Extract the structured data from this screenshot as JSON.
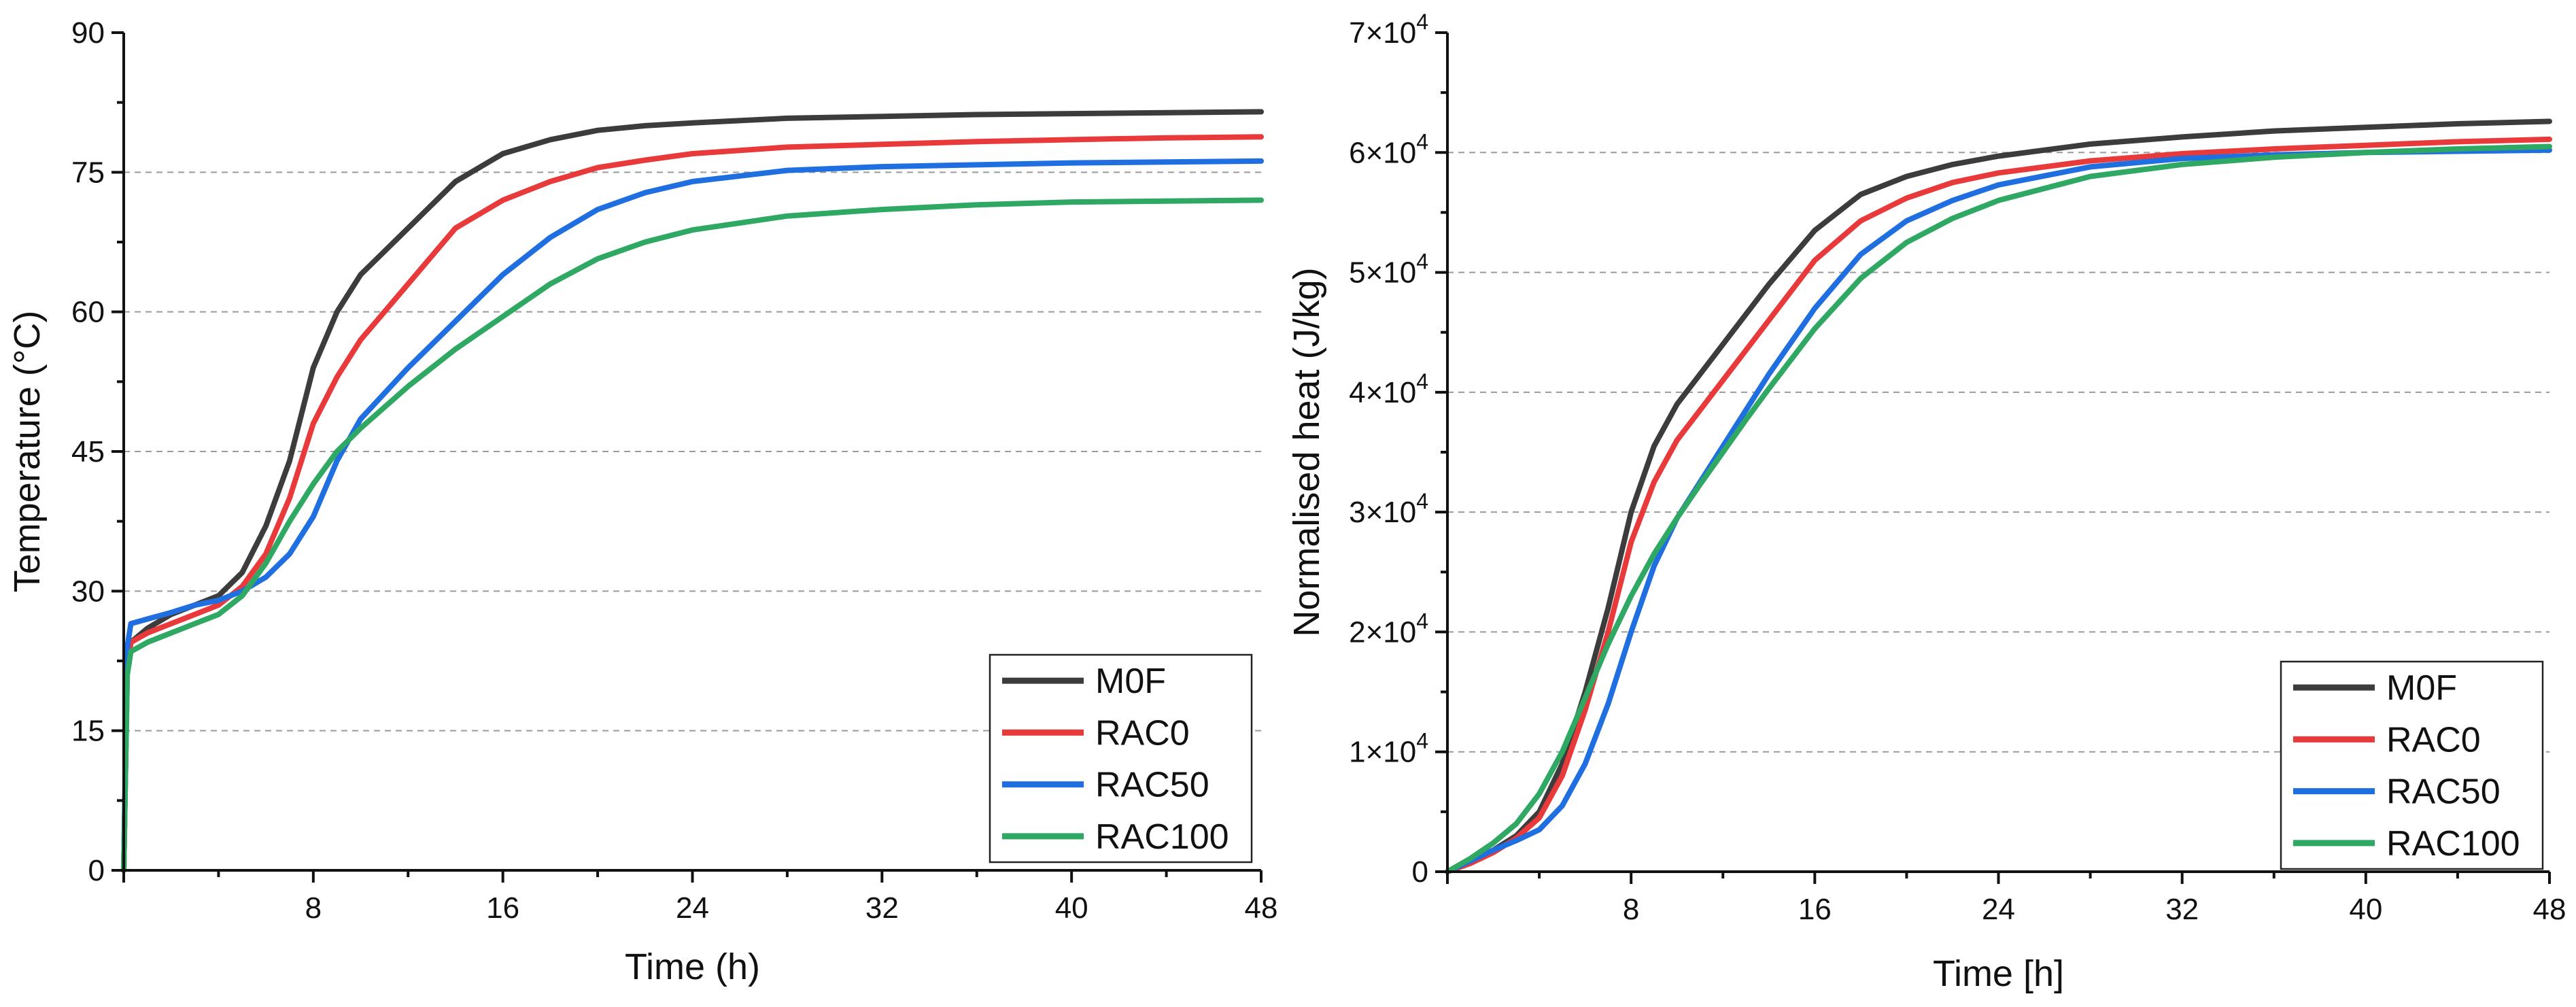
{
  "colors": {
    "M0F": "#3c3c3c",
    "RAC0": "#e83a3a",
    "RAC50": "#1f6fe0",
    "RAC100": "#2ea862"
  },
  "chart_data": [
    {
      "id": "temperature",
      "type": "line",
      "title": "",
      "xlabel": "Time (h)",
      "ylabel": "Temperature (°C)",
      "xlim": [
        0,
        48
      ],
      "ylim": [
        0,
        90
      ],
      "xticks": [
        8,
        16,
        24,
        32,
        40,
        48
      ],
      "yticks": [
        0,
        15,
        30,
        45,
        60,
        75,
        90
      ],
      "ytick_labels": [
        "0",
        "15",
        "30",
        "45",
        "60",
        "75",
        "90"
      ],
      "grid": "horizontal dashed",
      "legend": "bottom-right",
      "series": [
        {
          "name": "M0F",
          "x": [
            0,
            0.15,
            0.3,
            1,
            2,
            3,
            4,
            5,
            6,
            7,
            8,
            9,
            10,
            12,
            14,
            16,
            18,
            20,
            22,
            24,
            28,
            32,
            36,
            40,
            44,
            48
          ],
          "y": [
            0,
            22,
            24.5,
            26,
            27.5,
            28.5,
            29.5,
            32,
            37,
            44,
            54,
            60,
            64,
            69,
            74,
            77,
            78.5,
            79.5,
            80,
            80.3,
            80.8,
            81,
            81.2,
            81.3,
            81.4,
            81.5
          ]
        },
        {
          "name": "RAC0",
          "x": [
            0,
            0.15,
            0.3,
            1,
            2,
            3,
            4,
            5,
            6,
            7,
            8,
            9,
            10,
            12,
            14,
            16,
            18,
            20,
            22,
            24,
            28,
            32,
            36,
            40,
            44,
            48
          ],
          "y": [
            0,
            22,
            24.5,
            25.5,
            26.5,
            27.5,
            28.5,
            30.5,
            34,
            40,
            48,
            53,
            57,
            63,
            69,
            72,
            74,
            75.5,
            76.3,
            77,
            77.7,
            78,
            78.3,
            78.5,
            78.7,
            78.8
          ]
        },
        {
          "name": "RAC50",
          "x": [
            0,
            0.15,
            0.3,
            1,
            2,
            3,
            4,
            5,
            6,
            7,
            8,
            9,
            10,
            12,
            14,
            16,
            18,
            20,
            22,
            24,
            28,
            32,
            36,
            40,
            44,
            48
          ],
          "y": [
            0,
            24,
            26.5,
            27,
            27.7,
            28.5,
            29,
            30,
            31.5,
            34,
            38,
            44,
            48.5,
            54,
            59,
            64,
            68,
            71,
            72.8,
            74,
            75.2,
            75.6,
            75.8,
            76,
            76.1,
            76.2
          ]
        },
        {
          "name": "RAC100",
          "x": [
            0,
            0.15,
            0.3,
            1,
            2,
            3,
            4,
            5,
            6,
            7,
            8,
            9,
            10,
            12,
            14,
            16,
            18,
            20,
            22,
            24,
            28,
            32,
            36,
            40,
            44,
            48
          ],
          "y": [
            0,
            21,
            23.5,
            24.5,
            25.5,
            26.5,
            27.5,
            29.5,
            33,
            37.5,
            41.5,
            45,
            47.5,
            52,
            56,
            59.5,
            63,
            65.7,
            67.5,
            68.8,
            70.3,
            71,
            71.5,
            71.8,
            71.9,
            72
          ]
        }
      ]
    },
    {
      "id": "heat",
      "type": "line",
      "title": "",
      "xlabel": "Time [h]",
      "ylabel": "Normalised heat (J/kg)",
      "xlim": [
        0,
        48
      ],
      "ylim": [
        0,
        70000
      ],
      "xticks": [
        8,
        16,
        24,
        32,
        40,
        48
      ],
      "yticks": [
        0,
        10000,
        20000,
        30000,
        40000,
        50000,
        60000,
        70000
      ],
      "ytick_labels": [
        {
          "mantissa": "0",
          "exponent": ""
        },
        {
          "mantissa": "1×10",
          "exponent": "4"
        },
        {
          "mantissa": "2×10",
          "exponent": "4"
        },
        {
          "mantissa": "3×10",
          "exponent": "4"
        },
        {
          "mantissa": "4×10",
          "exponent": "4"
        },
        {
          "mantissa": "5×10",
          "exponent": "4"
        },
        {
          "mantissa": "6×10",
          "exponent": "4"
        },
        {
          "mantissa": "7×10",
          "exponent": "4"
        }
      ],
      "grid": "horizontal dashed",
      "legend": "bottom-right",
      "series": [
        {
          "name": "M0F",
          "x": [
            0,
            1,
            2,
            3,
            4,
            5,
            6,
            7,
            8,
            9,
            10,
            11,
            12,
            13,
            14,
            16,
            18,
            20,
            22,
            24,
            28,
            32,
            36,
            40,
            44,
            48
          ],
          "y": [
            0,
            800,
            1800,
            3000,
            5000,
            9000,
            15000,
            22000,
            30000,
            35500,
            39000,
            41500,
            44000,
            46500,
            49000,
            53500,
            56500,
            58000,
            59000,
            59700,
            60700,
            61300,
            61800,
            62100,
            62400,
            62600
          ]
        },
        {
          "name": "RAC0",
          "x": [
            0,
            1,
            2,
            3,
            4,
            5,
            6,
            7,
            8,
            9,
            10,
            11,
            12,
            13,
            14,
            16,
            18,
            20,
            22,
            24,
            28,
            32,
            36,
            40,
            44,
            48
          ],
          "y": [
            0,
            700,
            1600,
            2800,
            4500,
            8000,
            13500,
            20000,
            27500,
            32500,
            36000,
            38500,
            41000,
            43500,
            46000,
            51000,
            54300,
            56200,
            57500,
            58300,
            59300,
            59900,
            60300,
            60600,
            60900,
            61100
          ]
        },
        {
          "name": "RAC50",
          "x": [
            0,
            1,
            2,
            3,
            4,
            5,
            6,
            7,
            8,
            9,
            10,
            11,
            12,
            13,
            14,
            16,
            18,
            20,
            22,
            24,
            28,
            32,
            36,
            40,
            44,
            48
          ],
          "y": [
            0,
            900,
            1800,
            2600,
            3500,
            5500,
            9000,
            14000,
            20000,
            25500,
            29500,
            32500,
            35500,
            38500,
            41500,
            47000,
            51500,
            54300,
            56000,
            57300,
            58800,
            59500,
            59800,
            60000,
            60100,
            60200
          ]
        },
        {
          "name": "RAC100",
          "x": [
            0,
            1,
            2,
            3,
            4,
            5,
            6,
            7,
            8,
            9,
            10,
            11,
            12,
            13,
            14,
            16,
            18,
            20,
            22,
            24,
            28,
            32,
            36,
            40,
            44,
            48
          ],
          "y": [
            0,
            1100,
            2400,
            4000,
            6500,
            10000,
            14500,
            19000,
            23000,
            26500,
            29500,
            32300,
            35000,
            37700,
            40300,
            45300,
            49500,
            52500,
            54500,
            56000,
            58000,
            59000,
            59600,
            60000,
            60300,
            60500
          ]
        }
      ]
    }
  ]
}
